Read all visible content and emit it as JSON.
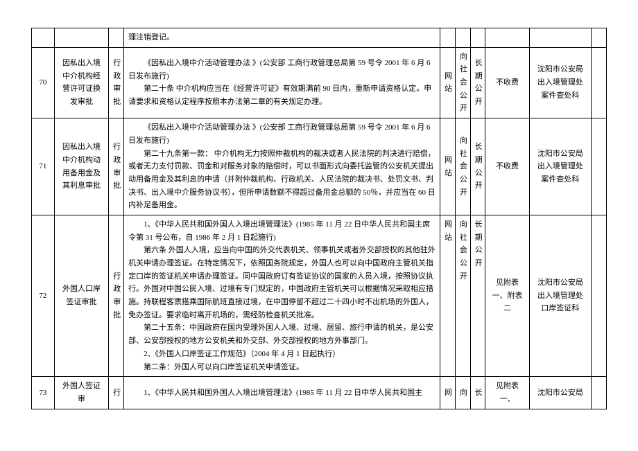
{
  "table": {
    "font_size": 11,
    "border_color": "#000000",
    "text_color": "#000000",
    "background_color": "#ffffff",
    "rows": [
      {
        "seq": "",
        "name": "",
        "type": "",
        "basis": "理注销登记。",
        "pubway": "",
        "pubto": "",
        "pubtime": "",
        "fee": "",
        "dept": "",
        "last": ""
      },
      {
        "seq": "70",
        "name": "因私出入境中介机构经营许可证换发审批",
        "type": "行政审批",
        "basis_lines": [
          "《因私出入境中介活动管理办法 》(公安部 工商行政管理总局第 59 号令 2001 年 6 月 6 日发布施行)",
          "第二十条 中介机构应当在《经营许可证》有效期满前 90 日内，重新申请资格认定。申请要求和资格认定程序按照本办法第二章的有关规定办理。"
        ],
        "pubway": "网站",
        "pubto": "向社会公开",
        "pubtime": "长期公开",
        "fee": "不收费",
        "dept": "沈阳市公安局出入境管理处案件查处科",
        "last": ""
      },
      {
        "seq": "71",
        "name": "因私出入境中介机构动用备用金及其利息审批",
        "type": "行政审批",
        "basis_lines": [
          "《因私出入境中介活动管理办法 》(公安部 工商行政管理总局第 59 号令 2001 年 6 月 6 日发布施行)",
          "第二十九条第一款：  中介机构无力按照仲裁机构的裁决或者人民法院的判决进行赔偿，或者无力支付罚款、罚金和对服务对象的赔偿时，可以书面形式向委托监管的公安机关提出动用备用金及其利息的申请（并附仲裁机构、行政机关、人民法院的裁决书、处罚文书、判决书、出入境中介服务协议书），但所申请数额不得超过备用金总额的 50％，并应当在 60 日内补足备用金。"
        ],
        "pubway": "网站",
        "pubto": "向社会公开",
        "pubtime": "长期公开",
        "fee": "不收费",
        "dept": "沈阳市公安局出入境管理处案件查处科",
        "last": ""
      },
      {
        "seq": "72",
        "name": "外国人口岸签证审批",
        "type": "行政审批",
        "basis_lines": [
          "1、《中华人民共和国外国人入境出境管理法》(1985 年 11 月 22 日中华人民共和国主席令第 31 号公布，自 1986 年 2 月 1 日起施行)",
          "第六条 外国人入境，应当向中国的外交代表机关、领事机关或者外交部授权的其他驻外机关申请办理签证。在特定情况下，依照国务院规定，外国人也可以向中国政府主管机关指定口岸的签证机关申请办理签证。同中国政府订有签证协议的国家的人员入境，按照协议执行。外国对中国公民入境、过境有专门规定的，中国政府主管机关可以根据情况采取相应措施。持联程客票搭乘国际航班直接过境，在中国停留不超过二十四小时不出机场的外国人，免办签证。要求临时离开机场的，需经防检查机关批准。",
          "第二十五条：中国政府在国内受理外国人入境、过境、居留、旅行申请的机关，是公安部、公安部授权的地方公安机关和外交部、外交部授权的地方外事部门。",
          "2、《外国人口岸签证工作规范》（2004 年 4 月 1 日起执行）",
          "第二条：外国人可以向口岸签证机关申请签证。"
        ],
        "pubway": "网站",
        "pubto": "向社会公开",
        "pubtime": "长期公开",
        "fee": "见附表一、附表二",
        "dept": "沈阳市公安局出入境管理处口岸签证科",
        "last": ""
      },
      {
        "seq": "73",
        "name": "外国人签证审",
        "type": "行",
        "basis_lines": [
          "1、《中华人民共和国外国人入境出境管理法》(1985 年 11 月 22 日中华人民共和国主"
        ],
        "pubway": "网",
        "pubto": "向",
        "pubtime": "长",
        "fee": "见附表一、",
        "dept": "沈阳市公安局",
        "last": ""
      }
    ]
  }
}
